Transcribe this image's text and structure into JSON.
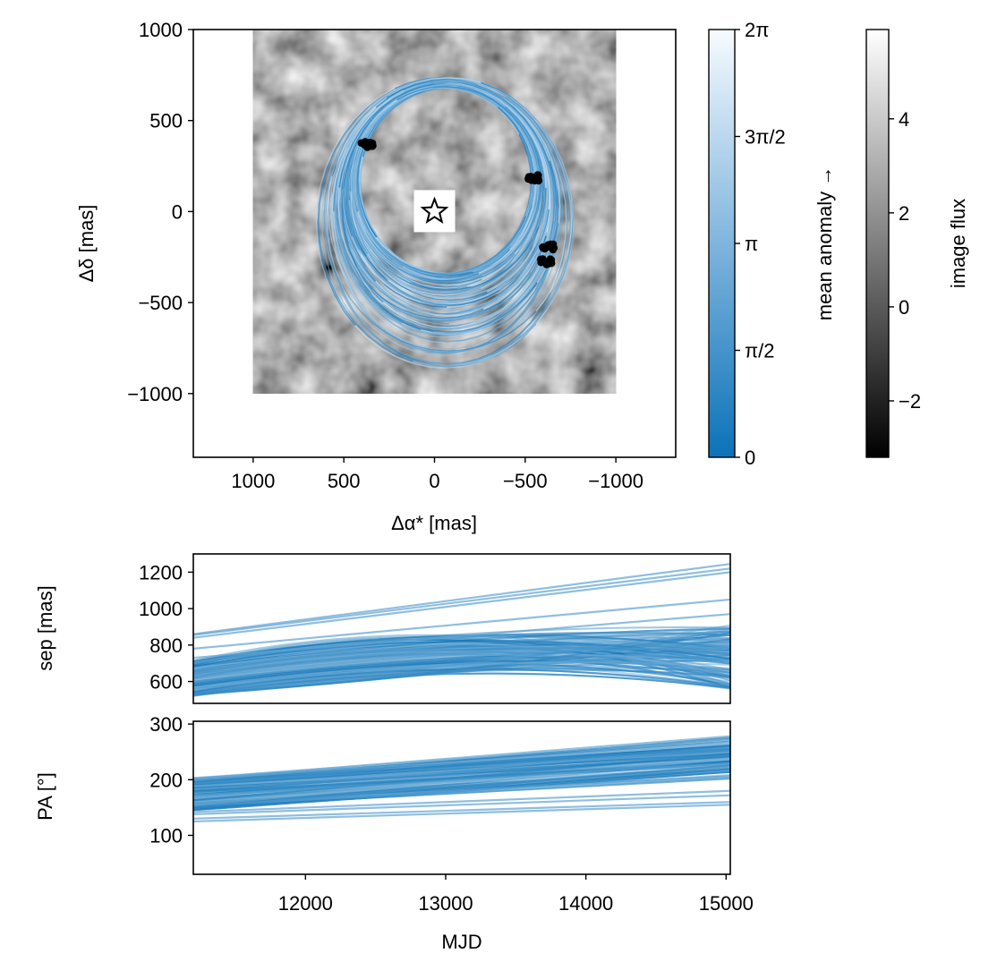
{
  "colors": {
    "orbit_dark": "#0b72b8",
    "orbit_light": "#dbe9f6",
    "points": "#000000",
    "frame": "#000000"
  },
  "chart_data": [
    {
      "name": "sky-plot",
      "type": "line",
      "xlabel": "Δα* [mas]",
      "ylabel": "Δδ [mas]",
      "xlim": [
        1330,
        -1330
      ],
      "ylim": [
        -1350,
        1000
      ],
      "xticks": [
        1000,
        500,
        0,
        -500,
        -1000
      ],
      "xtick_labels": [
        "1000",
        "500",
        "0",
        "−500",
        "−1000"
      ],
      "yticks": [
        1000,
        500,
        0,
        -500,
        -1000
      ],
      "ytick_labels": [
        "1000",
        "500",
        "0",
        "−500",
        "−1000"
      ],
      "image_extent": {
        "ra": [
          1000,
          -1000
        ],
        "dec": [
          -1000,
          1000
        ]
      },
      "orbit_count": 140,
      "orbit_ellipse": {
        "center_ra": [
          -85,
          -40
        ],
        "center_dec": [
          170,
          -70
        ],
        "semi_ra": [
          490,
          740
        ],
        "semi_dec": [
          510,
          810
        ]
      },
      "star_marker": {
        "ra": 0,
        "dec": 0
      },
      "astrometry_clusters": [
        {
          "ra": 370,
          "dec": 370
        },
        {
          "ra": -540,
          "dec": 185
        },
        {
          "ra": -625,
          "dec": -195
        },
        {
          "ra": -615,
          "dec": -275
        }
      ]
    },
    {
      "name": "mean-anomaly-colorbar",
      "type": "heatmap",
      "label": "mean anomaly →",
      "range": [
        0,
        6.2832
      ],
      "ticks": [
        0,
        1.5708,
        3.1416,
        4.7124,
        6.2832
      ],
      "tick_labels": [
        "0",
        "π/2",
        "π",
        "3π/2",
        "2π"
      ],
      "colors": [
        "#0b72b8",
        "#7fb5dd",
        "#f7fbff"
      ]
    },
    {
      "name": "image-flux-colorbar",
      "type": "heatmap",
      "label": "image flux",
      "range": [
        -3.2,
        5.9
      ],
      "ticks": [
        -2,
        0,
        2,
        4
      ],
      "tick_labels": [
        "−2",
        "0",
        "2",
        "4"
      ],
      "colors": [
        "#000000",
        "#ffffff"
      ]
    },
    {
      "name": "separation-plot",
      "type": "line",
      "xlabel": "",
      "ylabel": "sep [mas]",
      "xlim": [
        11200,
        15030
      ],
      "ylim": [
        480,
        1300
      ],
      "yticks": [
        600,
        800,
        1000,
        1200
      ],
      "ytick_labels": [
        "600",
        "800",
        "1000",
        "1200"
      ],
      "series_band": {
        "x": [
          11200,
          13000,
          15030
        ],
        "low": [
          520,
          640,
          560
        ],
        "high": [
          720,
          860,
          910
        ]
      },
      "outliers": [
        {
          "x": [
            11200,
            15030
          ],
          "y": [
            840,
            1200
          ]
        },
        {
          "x": [
            11200,
            15030
          ],
          "y": [
            855,
            1220
          ]
        },
        {
          "x": [
            11200,
            15030
          ],
          "y": [
            860,
            1245
          ]
        },
        {
          "x": [
            11200,
            15030
          ],
          "y": [
            780,
            1050
          ]
        },
        {
          "x": [
            11200,
            15030
          ],
          "y": [
            730,
            970
          ]
        }
      ]
    },
    {
      "name": "position-angle-plot",
      "type": "line",
      "xlabel": "MJD",
      "ylabel": "PA [°]",
      "xlim": [
        11200,
        15030
      ],
      "ylim": [
        30,
        305
      ],
      "xticks": [
        12000,
        13000,
        14000,
        15000
      ],
      "xtick_labels": [
        "12000",
        "13000",
        "14000",
        "15000"
      ],
      "yticks": [
        100,
        200,
        300
      ],
      "ytick_labels": [
        "100",
        "200",
        "300"
      ],
      "series_band": {
        "x": [
          11200,
          15030
        ],
        "low": [
          145,
          195
        ],
        "high": [
          205,
          285
        ]
      },
      "outliers": [
        {
          "x": [
            11200,
            15030
          ],
          "y": [
            125,
            155
          ]
        },
        {
          "x": [
            11200,
            15030
          ],
          "y": [
            130,
            160
          ]
        },
        {
          "x": [
            11200,
            15030
          ],
          "y": [
            138,
            172
          ]
        },
        {
          "x": [
            11200,
            15030
          ],
          "y": [
            142,
            180
          ]
        }
      ]
    }
  ]
}
